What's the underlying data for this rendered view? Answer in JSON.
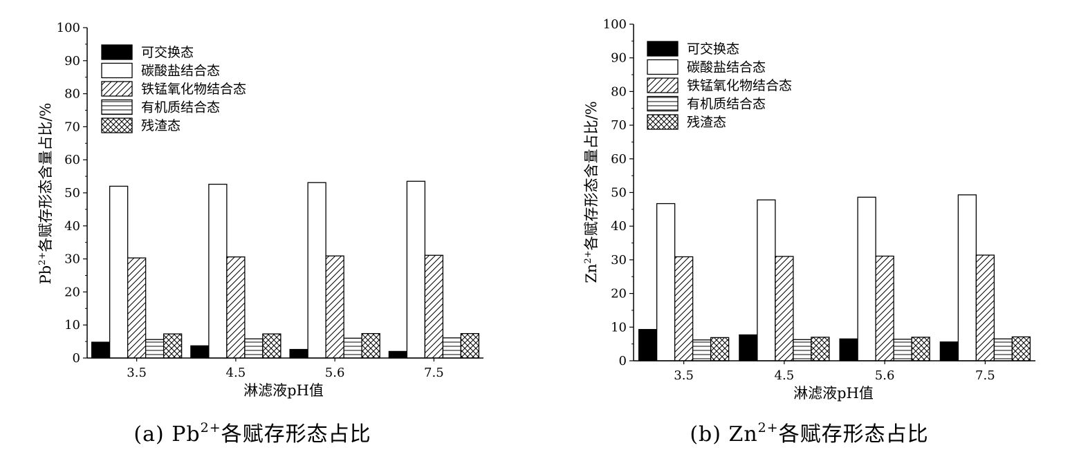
{
  "chart_data": [
    {
      "type": "bar",
      "caption": {
        "prefix": "(a) Pb",
        "sup": "2+",
        "suffix": "各赋存形态占比"
      },
      "ylabel": {
        "prefix": "Pb",
        "sup": "2+",
        "suffix": "各赋存形态含量占比/%"
      },
      "xlabel": "淋滤液pH值",
      "categories": [
        "3.5",
        "4.5",
        "5.6",
        "7.5"
      ],
      "ylim": [
        0,
        100
      ],
      "yticks": [
        "0",
        "10",
        "20",
        "30",
        "40",
        "50",
        "60",
        "70",
        "80",
        "90",
        "100"
      ],
      "legend_position": "top-left",
      "series": [
        {
          "name": "可交换态",
          "pattern": "solid",
          "values": [
            4.8,
            3.7,
            2.6,
            2.0
          ]
        },
        {
          "name": "碳酸盐结合态",
          "pattern": "none",
          "values": [
            52.0,
            52.6,
            53.1,
            53.5
          ]
        },
        {
          "name": "铁锰氧化物结合态",
          "pattern": "diagonal",
          "values": [
            30.3,
            30.6,
            30.9,
            31.1
          ]
        },
        {
          "name": "有机质结合态",
          "pattern": "horizontal",
          "values": [
            5.6,
            5.8,
            6.0,
            6.1
          ]
        },
        {
          "name": "残渣态",
          "pattern": "crosshatch",
          "values": [
            7.3,
            7.3,
            7.4,
            7.4
          ]
        }
      ]
    },
    {
      "type": "bar",
      "caption": {
        "prefix": "(b) Zn",
        "sup": "2+",
        "suffix": "各赋存形态占比"
      },
      "ylabel": {
        "prefix": "Zn",
        "sup": "2+",
        "suffix": "各赋存形态含量占比/%"
      },
      "xlabel": "淋滤液pH值",
      "categories": [
        "3.5",
        "4.5",
        "5.6",
        "7.5"
      ],
      "ylim": [
        0,
        100
      ],
      "yticks": [
        "0",
        "10",
        "20",
        "30",
        "40",
        "50",
        "60",
        "70",
        "80",
        "90",
        "100"
      ],
      "legend_position": "top-left",
      "series": [
        {
          "name": "可交换态",
          "pattern": "solid",
          "values": [
            9.3,
            7.7,
            6.5,
            5.6
          ]
        },
        {
          "name": "碳酸盐结合态",
          "pattern": "none",
          "values": [
            46.7,
            47.8,
            48.6,
            49.3
          ]
        },
        {
          "name": "铁锰氧化物结合态",
          "pattern": "diagonal",
          "values": [
            30.9,
            31.0,
            31.1,
            31.4
          ]
        },
        {
          "name": "有机质结合态",
          "pattern": "horizontal",
          "values": [
            6.2,
            6.3,
            6.4,
            6.5
          ]
        },
        {
          "name": "残渣态",
          "pattern": "crosshatch",
          "values": [
            6.9,
            7.0,
            7.0,
            7.1
          ]
        }
      ]
    }
  ]
}
